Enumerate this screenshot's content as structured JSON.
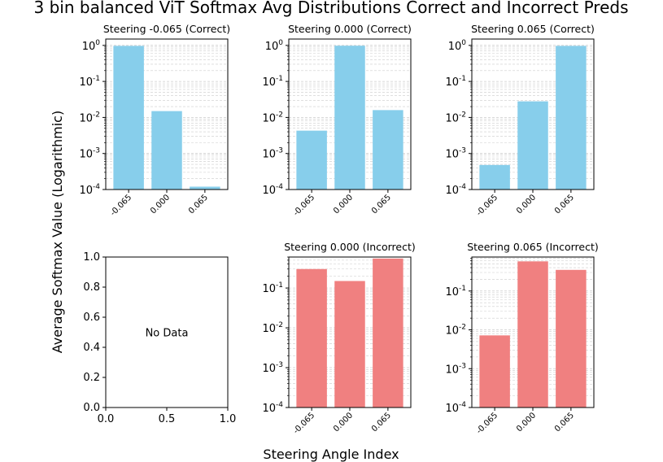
{
  "figure": {
    "title": "3 bin balanced ViT Softmax Avg Distributions Correct and Incorrect Preds",
    "xlabel": "Steering Angle Index",
    "ylabel": "Average Softmax Value (Logarithmic)"
  },
  "colors": {
    "correct": "#87ceeb",
    "incorrect": "#f08080",
    "grid": "#cccccc"
  },
  "chart_data": [
    {
      "type": "bar",
      "title": "Steering -0.065 (Correct)",
      "categories": [
        "-0.065",
        "0.000",
        "0.065"
      ],
      "values": [
        0.97,
        0.015,
        0.00012
      ],
      "yscale": "log",
      "ylim": [
        0.0001,
        1.5
      ],
      "grid": true,
      "color": "correct"
    },
    {
      "type": "bar",
      "title": "Steering 0.000 (Correct)",
      "categories": [
        "-0.065",
        "0.000",
        "0.065"
      ],
      "values": [
        0.0043,
        0.98,
        0.016
      ],
      "yscale": "log",
      "ylim": [
        0.0001,
        1.5
      ],
      "grid": true,
      "color": "correct"
    },
    {
      "type": "bar",
      "title": "Steering 0.065 (Correct)",
      "categories": [
        "-0.065",
        "0.000",
        "0.065"
      ],
      "values": [
        0.00048,
        0.028,
        0.97
      ],
      "yscale": "log",
      "ylim": [
        0.0001,
        1.5
      ],
      "grid": true,
      "color": "correct"
    },
    {
      "type": "empty",
      "title": "",
      "text": "No Data",
      "yticks": [
        "0.0",
        "0.2",
        "0.4",
        "0.6",
        "0.8",
        "1.0"
      ],
      "xticks": [
        "0.0",
        "0.5",
        "1.0"
      ]
    },
    {
      "type": "bar",
      "title": "Steering 0.000 (Incorrect)",
      "categories": [
        "-0.065",
        "0.000",
        "0.065"
      ],
      "values": [
        0.3,
        0.15,
        0.55
      ],
      "yscale": "log",
      "ylim": [
        0.0001,
        0.6
      ],
      "grid": true,
      "color": "incorrect"
    },
    {
      "type": "bar",
      "title": "Steering 0.065 (Incorrect)",
      "categories": [
        "-0.065",
        "0.000",
        "0.065"
      ],
      "values": [
        0.0072,
        0.58,
        0.35
      ],
      "yscale": "log",
      "ylim": [
        0.0001,
        0.75
      ],
      "grid": true,
      "color": "incorrect"
    }
  ]
}
